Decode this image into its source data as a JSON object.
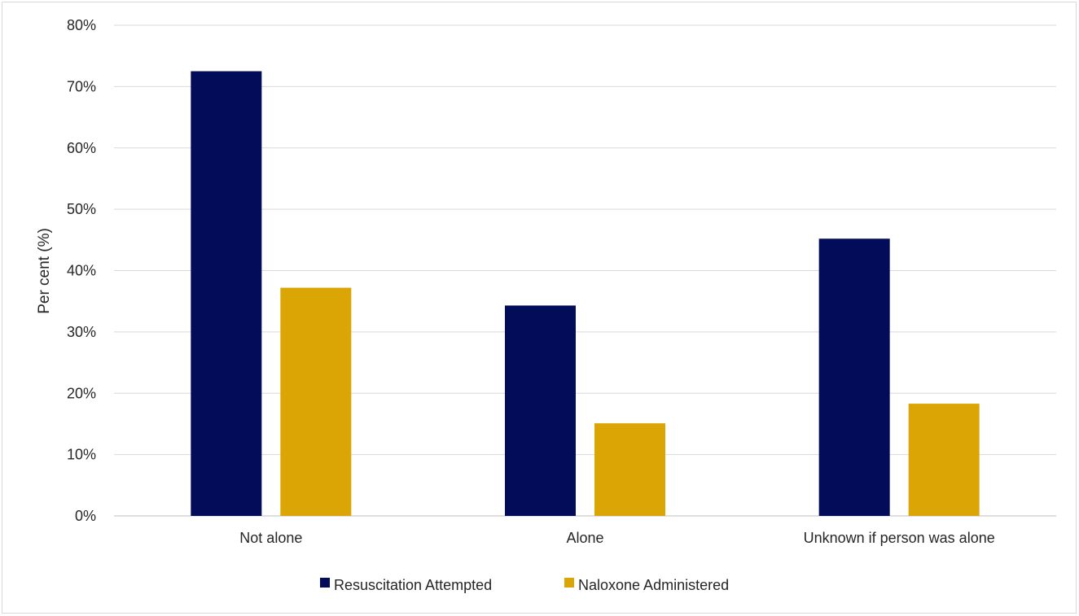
{
  "chart_data": {
    "type": "bar",
    "title": "",
    "xlabel": "",
    "ylabel": "Per cent (%)",
    "ylim": [
      0,
      80
    ],
    "y_ticks": [
      0,
      10,
      20,
      30,
      40,
      50,
      60,
      70,
      80
    ],
    "y_tick_labels": [
      "0%",
      "10%",
      "20%",
      "30%",
      "40%",
      "50%",
      "60%",
      "70%",
      "80%"
    ],
    "grid": true,
    "legend_position": "bottom",
    "categories": [
      "Not alone",
      "Alone",
      "Unknown if person was alone"
    ],
    "series": [
      {
        "name": "Resuscitation Attempted",
        "color": "#020c58",
        "values": [
          72.5,
          34.3,
          45.2
        ]
      },
      {
        "name": "Naloxone Administered",
        "color": "#dca506",
        "values": [
          37.2,
          15.1,
          18.3
        ]
      }
    ]
  }
}
